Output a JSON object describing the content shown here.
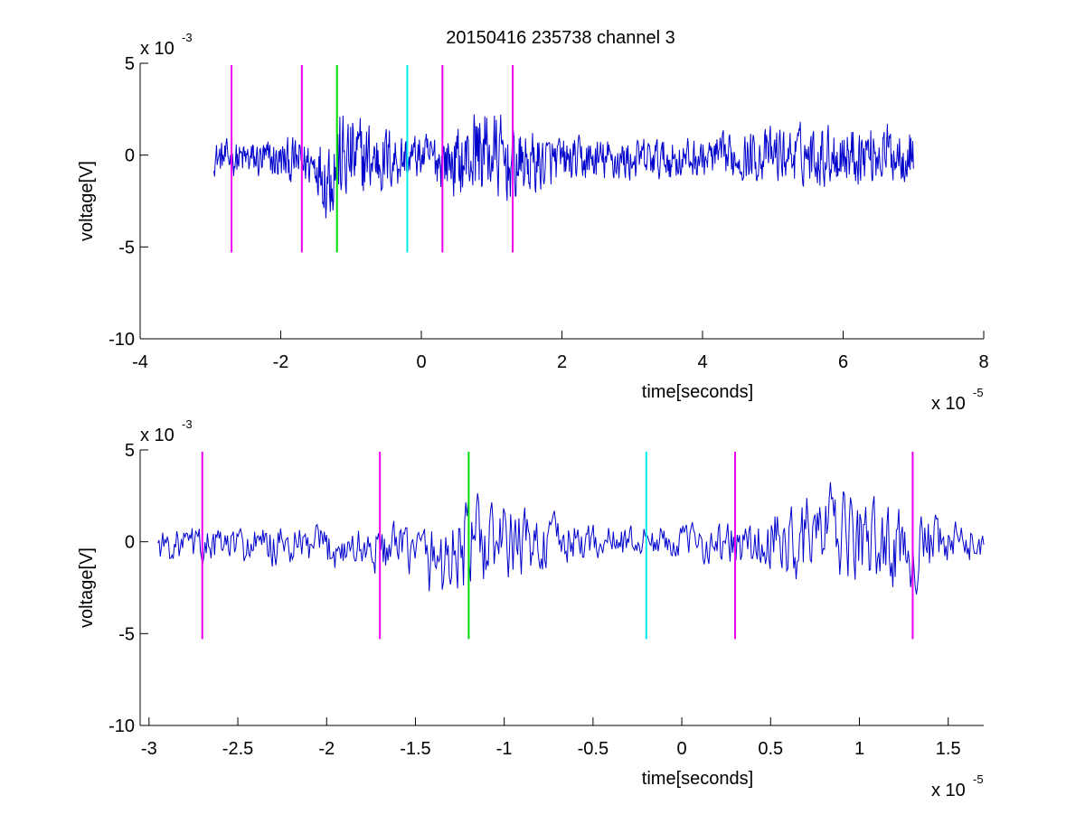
{
  "title": "20150416 235738 channel 3",
  "colors": {
    "signal": "#0000cc",
    "magenta": "#ee00ee",
    "green": "#00dd00",
    "cyan": "#00eeee",
    "axis": "#000000"
  },
  "chart_data": [
    {
      "type": "line",
      "title": "20150416 235738 channel 3",
      "xlabel": "time[seconds]",
      "ylabel": "voltage[V]",
      "x_multiplier": "x 10",
      "x_exponent": "-5",
      "y_multiplier": "x 10",
      "y_exponent": "-3",
      "xlim": [
        -4,
        8
      ],
      "ylim": [
        -10,
        5
      ],
      "xticks": [
        -4,
        -2,
        0,
        2,
        4,
        6,
        8
      ],
      "xtick_labels": [
        "-4",
        "-2",
        "0",
        "2",
        "4",
        "6",
        "8"
      ],
      "yticks": [
        -10,
        -5,
        0,
        5
      ],
      "ytick_labels": [
        "-10",
        "-5",
        "0",
        "5"
      ],
      "grid": false,
      "series": [
        {
          "x_range": [
            -2.95,
            7.0
          ],
          "envelope": [
            [
              -2.95,
              1.2
            ],
            [
              -1.5,
              1.6
            ],
            [
              -1.2,
              3.8
            ],
            [
              0,
              1.6
            ],
            [
              0.6,
              2.6
            ],
            [
              0.8,
              4.3
            ],
            [
              1.3,
              2.5
            ],
            [
              2,
              1.5
            ],
            [
              4,
              1.4
            ],
            [
              5,
              2.2
            ],
            [
              6,
              2.6
            ],
            [
              7,
              2.4
            ]
          ],
          "envelope_low": [
            [
              -2.95,
              -1.5
            ],
            [
              -1.5,
              -2.5
            ],
            [
              -1.35,
              -4.8
            ],
            [
              0,
              -1.8
            ],
            [
              0.6,
              -3.5
            ],
            [
              1.3,
              -3.6
            ],
            [
              2,
              -2.2
            ],
            [
              4,
              -1.8
            ],
            [
              5,
              -2.2
            ],
            [
              6,
              -2.4
            ],
            [
              7,
              -2.1
            ]
          ]
        }
      ],
      "markers": [
        {
          "x": -2.7,
          "y": [
            -5.3,
            4.9
          ],
          "color": "magenta"
        },
        {
          "x": -1.7,
          "y": [
            -5.3,
            4.9
          ],
          "color": "magenta"
        },
        {
          "x": -1.2,
          "y": [
            -5.3,
            4.9
          ],
          "color": "green"
        },
        {
          "x": -0.2,
          "y": [
            -5.3,
            4.9
          ],
          "color": "cyan"
        },
        {
          "x": 0.3,
          "y": [
            -5.3,
            4.9
          ],
          "color": "magenta"
        },
        {
          "x": 1.3,
          "y": [
            -5.3,
            4.9
          ],
          "color": "magenta"
        }
      ]
    },
    {
      "type": "line",
      "title": "",
      "xlabel": "time[seconds]",
      "ylabel": "voltage[V]",
      "x_multiplier": "x 10",
      "x_exponent": "-5",
      "y_multiplier": "x 10",
      "y_exponent": "-3",
      "xlim": [
        -3.05,
        1.7
      ],
      "ylim": [
        -10,
        5
      ],
      "xticks": [
        -3,
        -2.5,
        -2,
        -1.5,
        -1,
        -0.5,
        0,
        0.5,
        1,
        1.5
      ],
      "xtick_labels": [
        "-3",
        "-2.5",
        "-2",
        "-1.5",
        "-1",
        "-0.5",
        "0",
        "0.5",
        "1",
        "1.5"
      ],
      "yticks": [
        -10,
        -5,
        0,
        5
      ],
      "ytick_labels": [
        "-10",
        "-5",
        "0",
        "5"
      ],
      "grid": false,
      "series": [
        {
          "x_range": [
            -2.95,
            1.7
          ],
          "envelope": [
            [
              -2.95,
              1.2
            ],
            [
              -1.5,
              1.6
            ],
            [
              -1.2,
              3.8
            ],
            [
              -0.5,
              1.4
            ],
            [
              0,
              1.3
            ],
            [
              0.4,
              2.0
            ],
            [
              0.8,
              4.3
            ],
            [
              1.3,
              2.5
            ],
            [
              1.7,
              1.2
            ]
          ],
          "envelope_low": [
            [
              -2.95,
              -1.5
            ],
            [
              -1.5,
              -2.5
            ],
            [
              -1.38,
              -4.8
            ],
            [
              -0.5,
              -1.4
            ],
            [
              0,
              -1.2
            ],
            [
              0.5,
              -3.0
            ],
            [
              1.3,
              -3.6
            ],
            [
              1.7,
              -1.2
            ]
          ]
        }
      ],
      "markers": [
        {
          "x": -2.7,
          "y": [
            -5.3,
            4.9
          ],
          "color": "magenta"
        },
        {
          "x": -1.7,
          "y": [
            -5.3,
            4.9
          ],
          "color": "magenta"
        },
        {
          "x": -1.2,
          "y": [
            -5.3,
            4.9
          ],
          "color": "green"
        },
        {
          "x": -0.2,
          "y": [
            -5.3,
            4.9
          ],
          "color": "cyan"
        },
        {
          "x": 0.3,
          "y": [
            -5.3,
            4.9
          ],
          "color": "magenta"
        },
        {
          "x": 1.3,
          "y": [
            -5.3,
            4.9
          ],
          "color": "magenta"
        }
      ]
    }
  ]
}
